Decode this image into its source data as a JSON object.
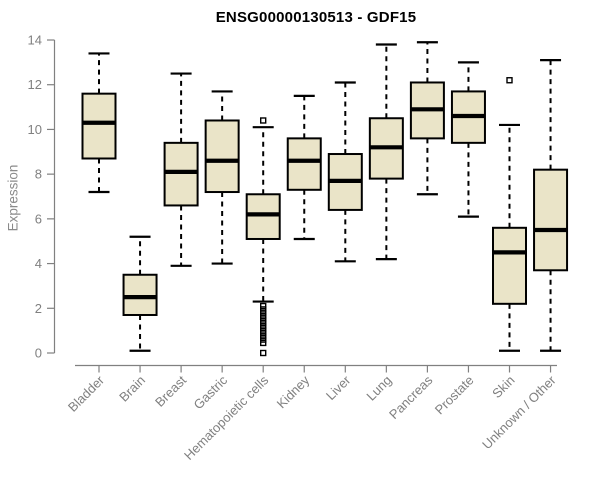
{
  "header": {
    "title": "ENSG00000130513 - GDF15"
  },
  "chart_data": {
    "type": "boxplot",
    "title": "ENSG00000130513 - GDF15",
    "ylabel": "Expression",
    "ylim": [
      0,
      14
    ],
    "yticks": [
      0,
      2,
      4,
      6,
      8,
      10,
      12,
      14
    ],
    "grid": false,
    "legend": false,
    "categories": [
      "Bladder",
      "Brain",
      "Breast",
      "Gastric",
      "Hematopoietic cells",
      "Kidney",
      "Liver",
      "Lung",
      "Pancreas",
      "Prostate",
      "Skin",
      "Unknown / Other"
    ],
    "series": [
      {
        "category": "Bladder",
        "low": 7.2,
        "q1": 8.7,
        "median": 10.3,
        "q3": 11.6,
        "high": 13.4,
        "outliers": []
      },
      {
        "category": "Brain",
        "low": 0.1,
        "q1": 1.7,
        "median": 2.5,
        "q3": 3.5,
        "high": 5.2,
        "outliers": []
      },
      {
        "category": "Breast",
        "low": 3.9,
        "q1": 6.6,
        "median": 8.1,
        "q3": 9.4,
        "high": 12.5,
        "outliers": []
      },
      {
        "category": "Gastric",
        "low": 4.0,
        "q1": 7.2,
        "median": 8.6,
        "q3": 10.4,
        "high": 11.7,
        "outliers": []
      },
      {
        "category": "Hematopoietic cells",
        "low": 2.3,
        "q1": 5.1,
        "median": 6.2,
        "q3": 7.1,
        "high": 10.1,
        "outliers": [
          10.4,
          2.1,
          1.95,
          1.8,
          1.65,
          1.5,
          1.35,
          1.2,
          1.05,
          0.9,
          0.75,
          0.6,
          0.45,
          0.0
        ]
      },
      {
        "category": "Kidney",
        "low": 5.1,
        "q1": 7.3,
        "median": 8.6,
        "q3": 9.6,
        "high": 11.5,
        "outliers": []
      },
      {
        "category": "Liver",
        "low": 4.1,
        "q1": 6.4,
        "median": 7.7,
        "q3": 8.9,
        "high": 12.1,
        "outliers": []
      },
      {
        "category": "Lung",
        "low": 4.2,
        "q1": 7.8,
        "median": 9.2,
        "q3": 10.5,
        "high": 13.8,
        "outliers": []
      },
      {
        "category": "Pancreas",
        "low": 7.1,
        "q1": 9.6,
        "median": 10.9,
        "q3": 12.1,
        "high": 13.9,
        "outliers": []
      },
      {
        "category": "Prostate",
        "low": 6.1,
        "q1": 9.4,
        "median": 10.6,
        "q3": 11.7,
        "high": 13.0,
        "outliers": []
      },
      {
        "category": "Skin",
        "low": 0.1,
        "q1": 2.2,
        "median": 4.5,
        "q3": 5.6,
        "high": 10.2,
        "outliers": [
          12.2
        ]
      },
      {
        "category": "Unknown / Other",
        "low": 0.1,
        "q1": 3.7,
        "median": 5.5,
        "q3": 8.2,
        "high": 13.1,
        "outliers": []
      }
    ],
    "colors": {
      "box_fill": "#EAE4C8",
      "box_stroke": "#000000",
      "axis": "#808080",
      "title_color": "#000000",
      "background": "#ffffff"
    }
  }
}
